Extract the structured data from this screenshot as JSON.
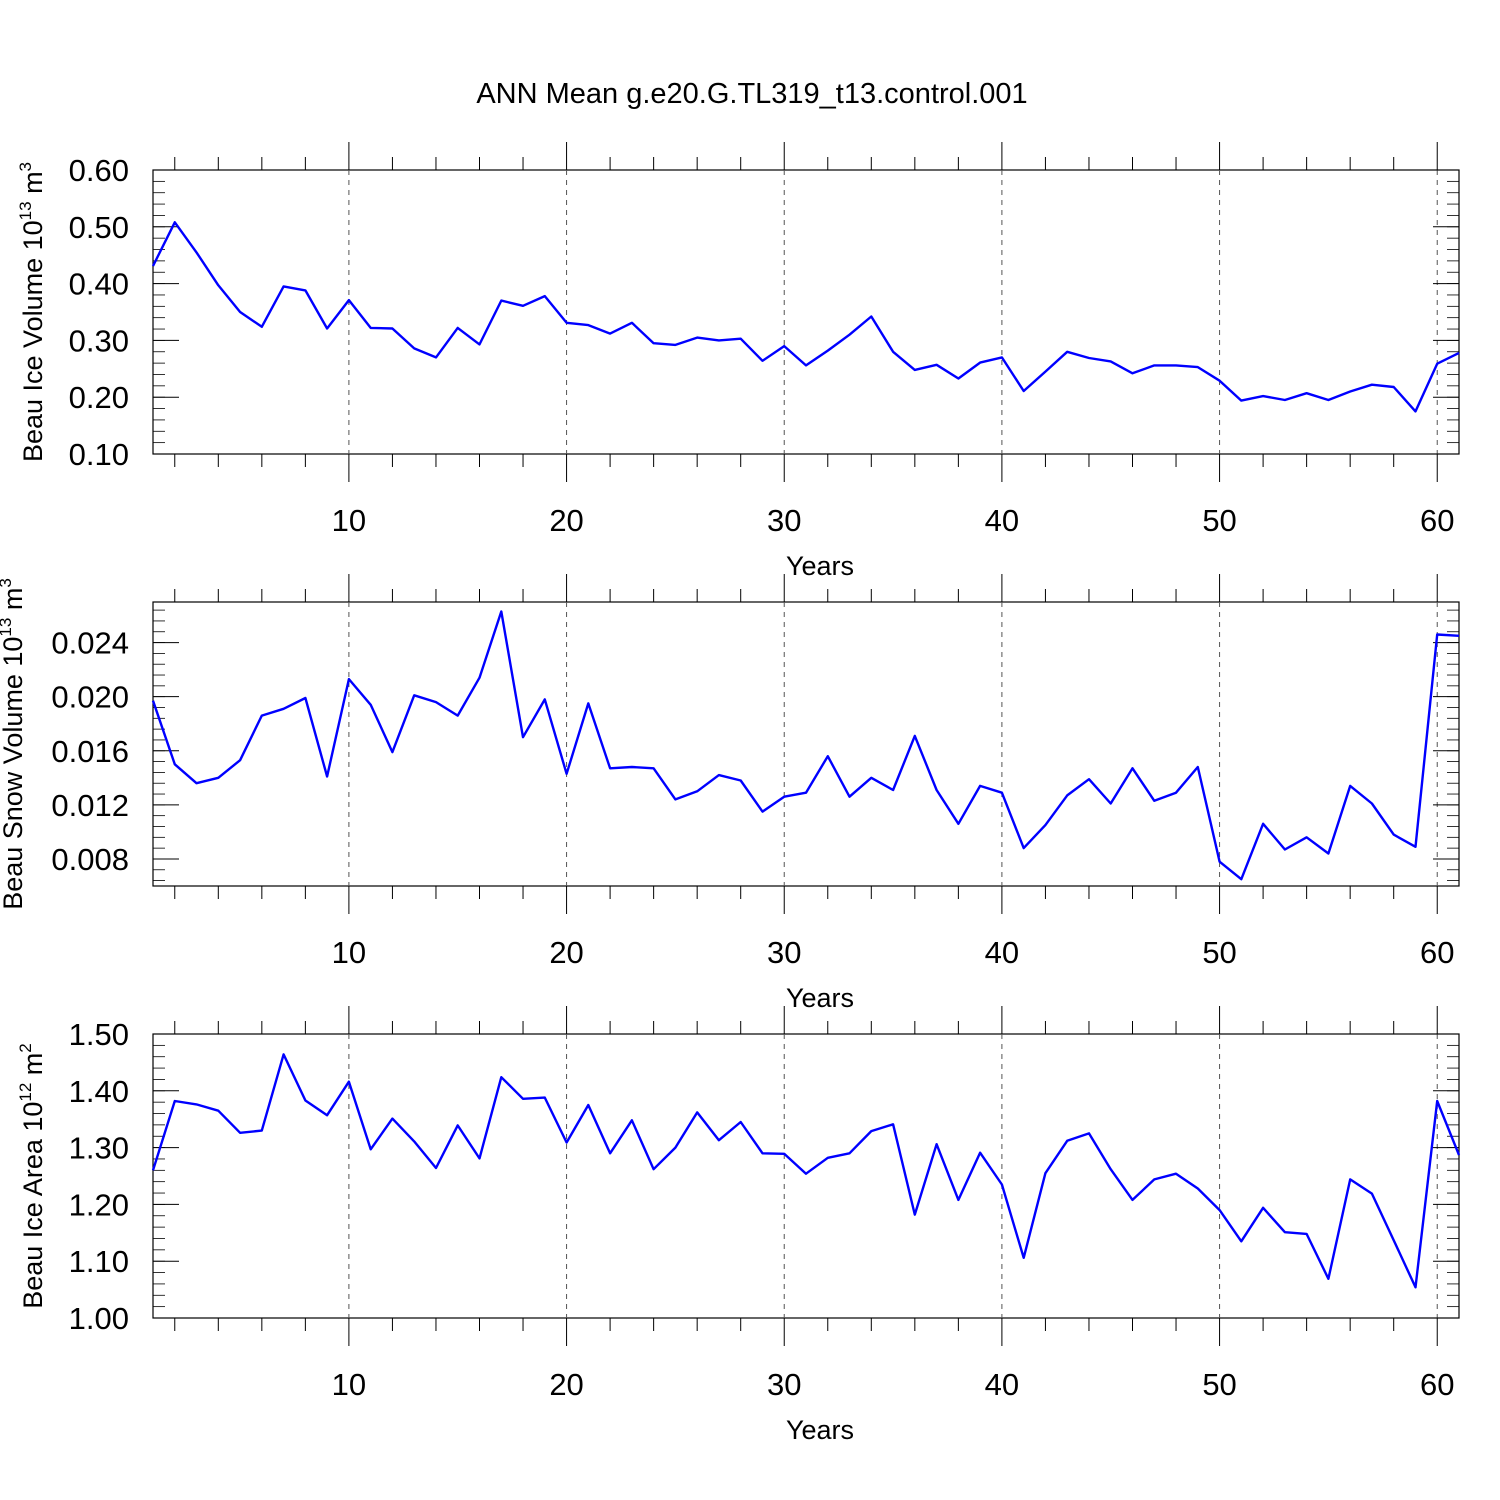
{
  "title": "ANN Mean g.e20.G.TL319_t13.control.001",
  "line_color": "#0000ff",
  "chart_data": [
    {
      "type": "line",
      "title": "ANN Mean g.e20.G.TL319_t13.control.001",
      "ylabel": {
        "base": "Beau Ice Volume 10",
        "exp": "13",
        "unit": " m",
        "unit_exp": "3"
      },
      "xlabel": "Years",
      "xlim": [
        1,
        61
      ],
      "ylim": [
        0.1,
        0.6
      ],
      "xticks": [
        10,
        20,
        30,
        40,
        50,
        60
      ],
      "xtick_labels": [
        "10",
        "20",
        "30",
        "40",
        "50",
        "60"
      ],
      "yticks": [
        0.1,
        0.2,
        0.3,
        0.4,
        0.5,
        0.6
      ],
      "ytick_labels": [
        "0.10",
        "0.20",
        "0.30",
        "0.40",
        "0.50",
        "0.60"
      ],
      "grid": "vertical dashed",
      "x": [
        1,
        2,
        3,
        4,
        5,
        6,
        7,
        8,
        9,
        10,
        11,
        12,
        13,
        14,
        15,
        16,
        17,
        18,
        19,
        20,
        21,
        22,
        23,
        24,
        25,
        26,
        27,
        28,
        29,
        30,
        31,
        32,
        33,
        34,
        35,
        36,
        37,
        38,
        39,
        40,
        41,
        42,
        43,
        44,
        45,
        46,
        47,
        48,
        49,
        50,
        51,
        52,
        53,
        54,
        55,
        56,
        57,
        58,
        59,
        60,
        61
      ],
      "values": [
        0.431,
        0.508,
        0.455,
        0.397,
        0.35,
        0.324,
        0.395,
        0.388,
        0.321,
        0.371,
        0.322,
        0.321,
        0.286,
        0.27,
        0.322,
        0.293,
        0.37,
        0.361,
        0.378,
        0.331,
        0.327,
        0.312,
        0.331,
        0.295,
        0.292,
        0.305,
        0.3,
        0.303,
        0.264,
        0.29,
        0.256,
        0.282,
        0.31,
        0.342,
        0.28,
        0.248,
        0.257,
        0.233,
        0.261,
        0.27,
        0.211,
        0.245,
        0.28,
        0.269,
        0.263,
        0.242,
        0.256,
        0.256,
        0.253,
        0.229,
        0.194,
        0.202,
        0.195,
        0.207,
        0.195,
        0.21,
        0.222,
        0.218,
        0.175,
        0.259,
        0.278
      ]
    },
    {
      "type": "line",
      "ylabel": {
        "base": "Beau Snow Volume 10",
        "exp": "13",
        "unit": " m",
        "unit_exp": "3"
      },
      "xlabel": "Years",
      "xlim": [
        1,
        61
      ],
      "ylim": [
        0.006,
        0.027
      ],
      "xticks": [
        10,
        20,
        30,
        40,
        50,
        60
      ],
      "xtick_labels": [
        "10",
        "20",
        "30",
        "40",
        "50",
        "60"
      ],
      "yticks": [
        0.008,
        0.012,
        0.016,
        0.02,
        0.024
      ],
      "ytick_labels": [
        "0.008",
        "0.012",
        "0.016",
        "0.020",
        "0.024"
      ],
      "grid": "vertical dashed",
      "x": [
        1,
        2,
        3,
        4,
        5,
        6,
        7,
        8,
        9,
        10,
        11,
        12,
        13,
        14,
        15,
        16,
        17,
        18,
        19,
        20,
        21,
        22,
        23,
        24,
        25,
        26,
        27,
        28,
        29,
        30,
        31,
        32,
        33,
        34,
        35,
        36,
        37,
        38,
        39,
        40,
        41,
        42,
        43,
        44,
        45,
        46,
        47,
        48,
        49,
        50,
        51,
        52,
        53,
        54,
        55,
        56,
        57,
        58,
        59,
        60,
        61
      ],
      "values": [
        0.0197,
        0.015,
        0.0136,
        0.014,
        0.0153,
        0.0186,
        0.0191,
        0.0199,
        0.0141,
        0.0213,
        0.0194,
        0.0159,
        0.0201,
        0.0196,
        0.0186,
        0.0214,
        0.0263,
        0.017,
        0.0198,
        0.0143,
        0.0195,
        0.0147,
        0.0148,
        0.0147,
        0.0124,
        0.013,
        0.0142,
        0.0138,
        0.0115,
        0.0126,
        0.0129,
        0.0156,
        0.0126,
        0.014,
        0.0131,
        0.0171,
        0.0131,
        0.0106,
        0.0134,
        0.0129,
        0.0088,
        0.0105,
        0.0127,
        0.0139,
        0.0121,
        0.0147,
        0.0123,
        0.0129,
        0.0148,
        0.0078,
        0.0065,
        0.0106,
        0.0087,
        0.0096,
        0.0084,
        0.0134,
        0.0121,
        0.0098,
        0.0089,
        0.0246,
        0.0245
      ]
    },
    {
      "type": "line",
      "ylabel": {
        "base": "Beau Ice Area 10",
        "exp": "12",
        "unit": " m",
        "unit_exp": "2"
      },
      "xlabel": "Years",
      "xlim": [
        1,
        61
      ],
      "ylim": [
        1.0,
        1.5
      ],
      "xticks": [
        10,
        20,
        30,
        40,
        50,
        60
      ],
      "xtick_labels": [
        "10",
        "20",
        "30",
        "40",
        "50",
        "60"
      ],
      "yticks": [
        1.0,
        1.1,
        1.2,
        1.3,
        1.4,
        1.5
      ],
      "ytick_labels": [
        "1.00",
        "1.10",
        "1.20",
        "1.30",
        "1.40",
        "1.50"
      ],
      "grid": "vertical dashed",
      "x": [
        1,
        2,
        3,
        4,
        5,
        6,
        7,
        8,
        9,
        10,
        11,
        12,
        13,
        14,
        15,
        16,
        17,
        18,
        19,
        20,
        21,
        22,
        23,
        24,
        25,
        26,
        27,
        28,
        29,
        30,
        31,
        32,
        33,
        34,
        35,
        36,
        37,
        38,
        39,
        40,
        41,
        42,
        43,
        44,
        45,
        46,
        47,
        48,
        49,
        50,
        51,
        52,
        53,
        54,
        55,
        56,
        57,
        58,
        59,
        60,
        61
      ],
      "values": [
        1.26,
        1.382,
        1.376,
        1.365,
        1.326,
        1.33,
        1.464,
        1.383,
        1.357,
        1.416,
        1.297,
        1.351,
        1.311,
        1.264,
        1.339,
        1.281,
        1.424,
        1.386,
        1.388,
        1.309,
        1.375,
        1.29,
        1.348,
        1.262,
        1.3,
        1.362,
        1.313,
        1.345,
        1.29,
        1.289,
        1.254,
        1.282,
        1.29,
        1.329,
        1.341,
        1.182,
        1.306,
        1.208,
        1.291,
        1.235,
        1.106,
        1.255,
        1.312,
        1.325,
        1.262,
        1.208,
        1.244,
        1.254,
        1.228,
        1.19,
        1.135,
        1.194,
        1.151,
        1.148,
        1.069,
        1.244,
        1.219,
        1.137,
        1.054,
        1.382,
        1.287
      ]
    }
  ]
}
